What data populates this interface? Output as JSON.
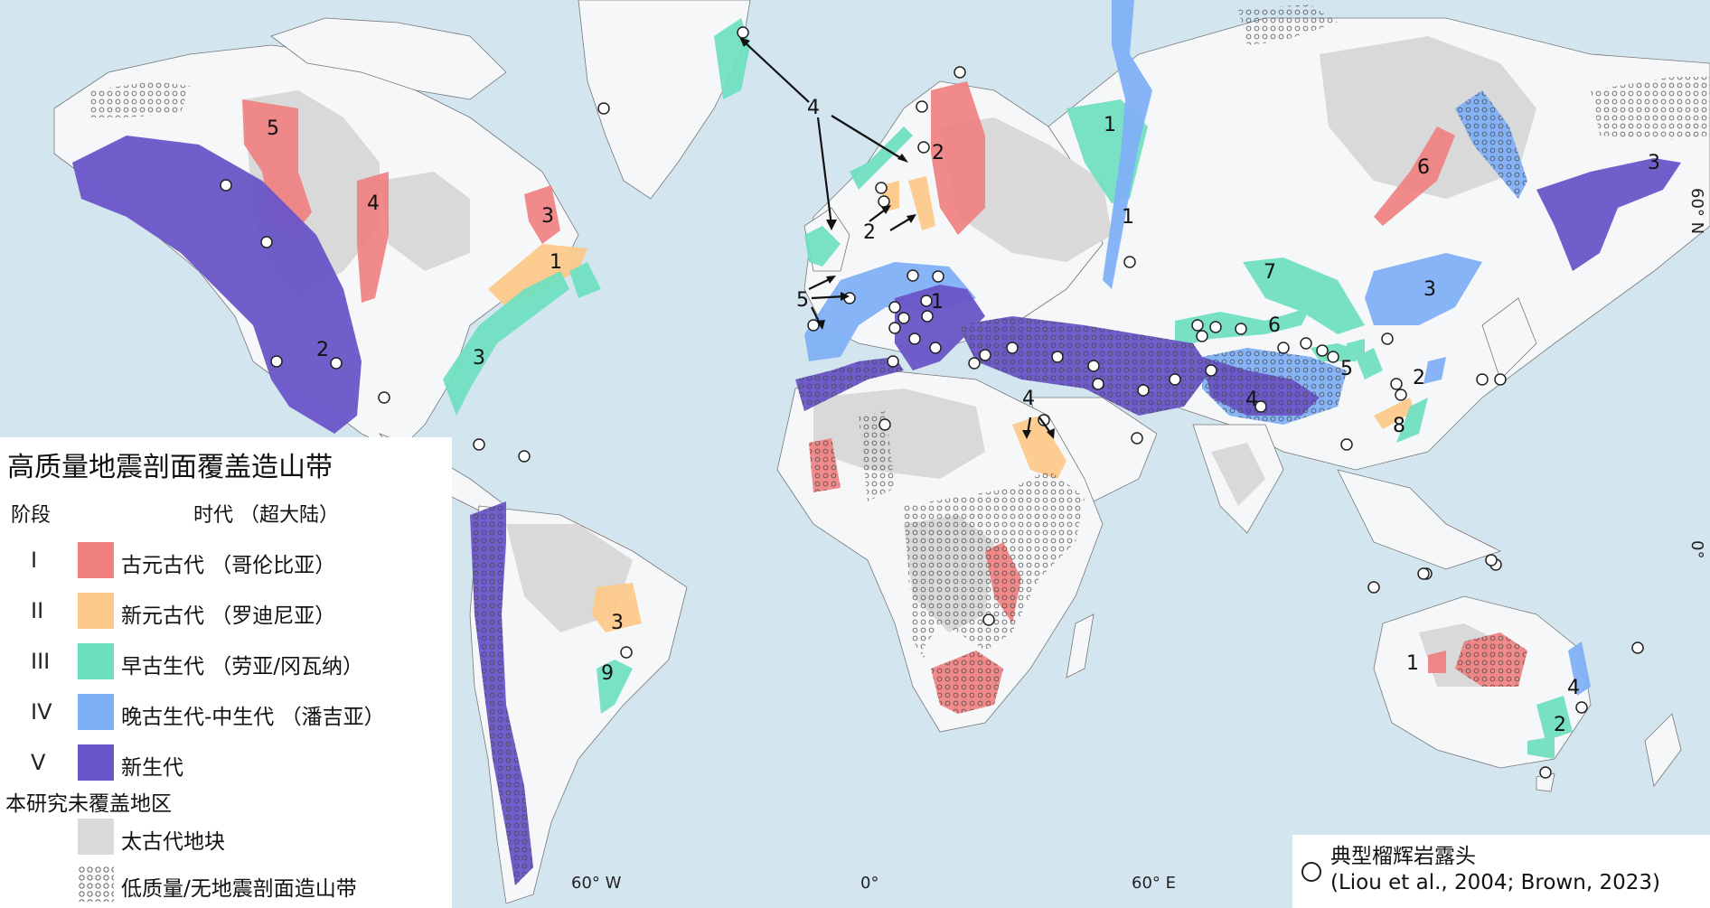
{
  "legend": {
    "title": "高质量地震剖面覆盖造山带",
    "stage_header": "阶段",
    "era_header": "时代 （超大陆）",
    "stages": [
      {
        "roman": "I",
        "label": "古元古代 （哥伦比亚）",
        "color": "#f08080"
      },
      {
        "roman": "II",
        "label": "新元古代 （罗迪尼亚）",
        "color": "#fcc98a"
      },
      {
        "roman": "III",
        "label": "早古生代 （劳亚/冈瓦纳）",
        "color": "#6ee0c0"
      },
      {
        "roman": "IV",
        "label": "晚古生代-中生代 （潘吉亚）",
        "color": "#7fb0f5"
      },
      {
        "roman": "V",
        "label": "新生代",
        "color": "#6a55c8"
      }
    ],
    "not_covered_title": "本研究未覆盖地区",
    "archean_label": "太古代地块",
    "archean_color": "#d9d9d9",
    "low_quality_label": "低质量/无地震剖面造山带"
  },
  "outcrop": {
    "line1": "典型榴辉岩露头",
    "line2": "(Liou et al., 2004; Brown, 2023)"
  },
  "axes": {
    "lon_60w": "60° W",
    "lon_0": "0°",
    "lon_60e": "60° E",
    "lat_60n": "60° N",
    "lat_0": "0°"
  },
  "region_numbers": {
    "na5": "5",
    "na4": "4",
    "na3": "3",
    "na1": "1",
    "na3b": "3",
    "na2": "2",
    "eu4": "4",
    "eu2": "2",
    "eu2b": "2",
    "eu5": "5",
    "eu1": "1",
    "ru1": "1",
    "ru1b": "1",
    "ar4": "4",
    "as7": "7",
    "as6": "6",
    "as5": "5",
    "as4": "4",
    "as2": "2",
    "as8": "8",
    "as6b": "6",
    "as3": "3",
    "as3b": "3",
    "sa3": "3",
    "sa9": "9",
    "au1": "1",
    "au4": "4",
    "au2": "2"
  }
}
